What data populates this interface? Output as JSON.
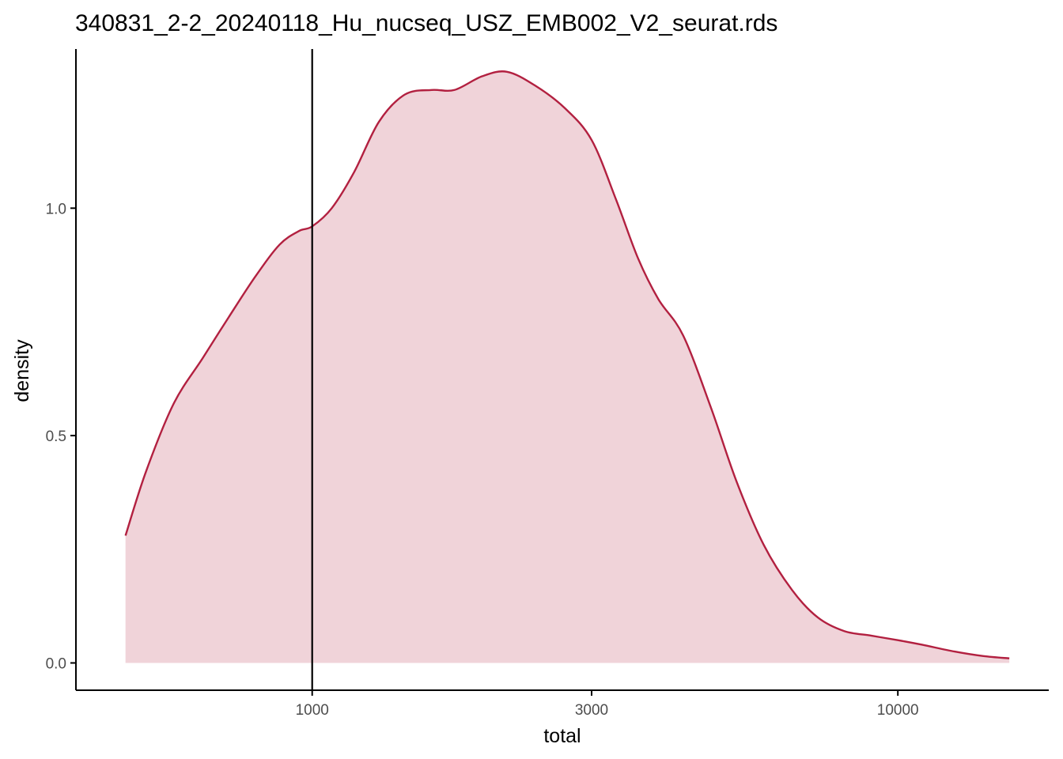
{
  "chart_data": {
    "type": "area",
    "title": "340831_2-2_20240118_Hu_nucseq_USZ_EMB002_V2_seurat.rds",
    "xlabel": "total",
    "ylabel": "density",
    "x_scale": "log10",
    "xlim": [
      395,
      18100
    ],
    "ylim": [
      -0.06,
      1.35
    ],
    "x_ticks": [
      1000,
      3000,
      10000
    ],
    "x_tick_labels": [
      "1000",
      "3000",
      "10000"
    ],
    "y_ticks": [
      0,
      0.5,
      1
    ],
    "y_tick_labels": [
      "0.0",
      "0.5",
      "1.0"
    ],
    "vline_x": 1000,
    "grid": false,
    "legend": "none",
    "series": [
      {
        "x": [
          480,
          520,
          580,
          650,
          720,
          800,
          880,
          950,
          1000,
          1080,
          1180,
          1300,
          1440,
          1600,
          1750,
          1950,
          2150,
          2400,
          2700,
          3000,
          3300,
          3600,
          3900,
          4300,
          4800,
          5300,
          5900,
          6600,
          7300,
          8100,
          9000,
          10000,
          11000,
          12500,
          14000,
          15500
        ],
        "y": [
          0.28,
          0.42,
          0.57,
          0.67,
          0.76,
          0.85,
          0.92,
          0.95,
          0.96,
          1.0,
          1.08,
          1.19,
          1.25,
          1.26,
          1.26,
          1.29,
          1.3,
          1.27,
          1.22,
          1.15,
          1.02,
          0.89,
          0.8,
          0.72,
          0.56,
          0.4,
          0.26,
          0.16,
          0.1,
          0.07,
          0.06,
          0.05,
          0.04,
          0.025,
          0.015,
          0.01
        ]
      }
    ],
    "colors": {
      "line": "#b22040",
      "fill": "#f0d3d9",
      "vline": "#000000",
      "axis": "#000000",
      "tick_label": "#4d4d4d"
    }
  }
}
